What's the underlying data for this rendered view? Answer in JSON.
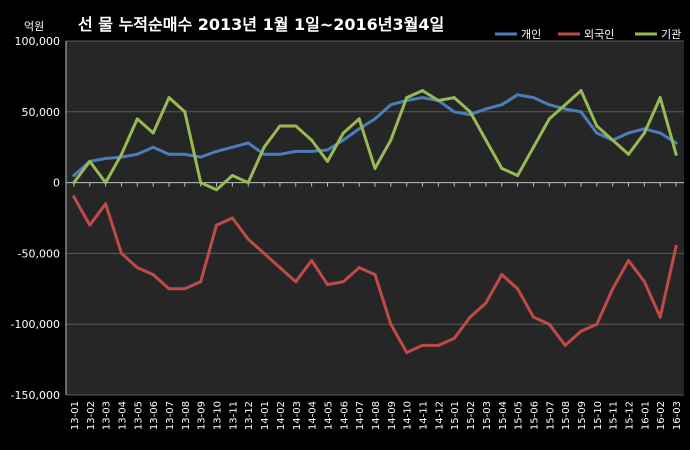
{
  "chart_data": {
    "type": "line",
    "title": "선 물 누적순매수 2013년 1월 1일~2016년3월4일",
    "unit_label": "억원",
    "ylim": [
      -150000,
      100000
    ],
    "y_ticks": [
      100000,
      50000,
      0,
      -50000,
      -100000,
      -150000
    ],
    "y_tick_labels": [
      "100,000",
      "50,000",
      "0",
      "-50,000",
      "-100,000",
      "-150,000"
    ],
    "x_tick_labels": [
      "13-01",
      "13-02",
      "13-03",
      "13-04",
      "13-05",
      "13-06",
      "13-07",
      "13-08",
      "13-09",
      "13-10",
      "13-11",
      "13-12",
      "14-01",
      "14-02",
      "14-03",
      "14-04",
      "14-05",
      "14-06",
      "14-07",
      "14-08",
      "14-09",
      "14-10",
      "14-11",
      "14-12",
      "15-01",
      "15-02",
      "15-03",
      "15-04",
      "15-05",
      "15-06",
      "15-07",
      "15-08",
      "15-09",
      "15-10",
      "15-11",
      "15-12",
      "16-01",
      "16-02",
      "16-03"
    ],
    "grid": true,
    "legend_position": "top-right",
    "series": [
      {
        "name": "개인",
        "color": "#4a7ebb",
        "values": [
          5000,
          15000,
          17000,
          18000,
          20000,
          25000,
          20000,
          20000,
          18000,
          22000,
          25000,
          28000,
          20000,
          20000,
          22000,
          22000,
          23000,
          30000,
          38000,
          45000,
          55000,
          58000,
          60000,
          58000,
          50000,
          48000,
          52000,
          55000,
          62000,
          60000,
          55000,
          52000,
          50000,
          35000,
          30000,
          35000,
          38000,
          35000,
          28000
        ]
      },
      {
        "name": "외국인",
        "color": "#be4b48",
        "values": [
          -10000,
          -30000,
          -15000,
          -50000,
          -60000,
          -65000,
          -75000,
          -75000,
          -70000,
          -30000,
          -25000,
          -40000,
          -50000,
          -60000,
          -70000,
          -55000,
          -72000,
          -70000,
          -60000,
          -65000,
          -100000,
          -120000,
          -115000,
          -115000,
          -110000,
          -95000,
          -85000,
          -65000,
          -75000,
          -95000,
          -100000,
          -115000,
          -105000,
          -100000,
          -75000,
          -55000,
          -70000,
          -95000,
          -45000
        ]
      },
      {
        "name": "기관",
        "color": "#98b954",
        "values": [
          0,
          15000,
          0,
          20000,
          45000,
          35000,
          60000,
          50000,
          0,
          -5000,
          5000,
          0,
          25000,
          40000,
          40000,
          30000,
          15000,
          35000,
          45000,
          10000,
          30000,
          60000,
          65000,
          58000,
          60000,
          50000,
          30000,
          10000,
          5000,
          25000,
          45000,
          55000,
          65000,
          40000,
          30000,
          20000,
          35000,
          60000,
          20000
        ]
      }
    ]
  }
}
